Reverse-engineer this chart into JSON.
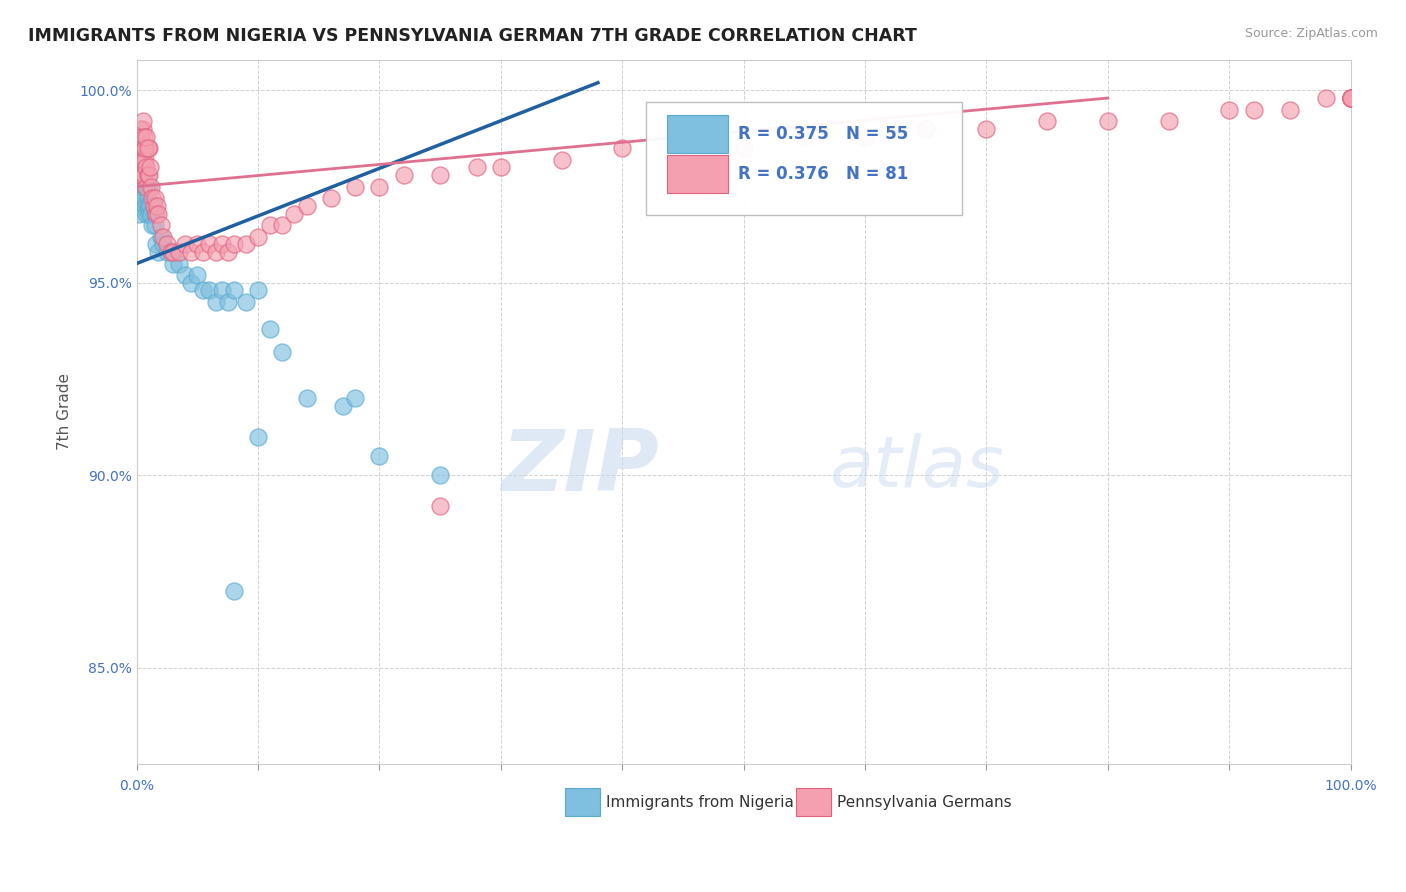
{
  "title": "IMMIGRANTS FROM NIGERIA VS PENNSYLVANIA GERMAN 7TH GRADE CORRELATION CHART",
  "source": "Source: ZipAtlas.com",
  "ylabel": "7th Grade",
  "xmin": 0.0,
  "xmax": 1.0,
  "ymin": 0.825,
  "ymax": 1.008,
  "yticks": [
    0.85,
    0.9,
    0.95,
    1.0
  ],
  "ytick_labels": [
    "85.0%",
    "90.0%",
    "95.0%",
    "100.0%"
  ],
  "blue_R": "0.375",
  "blue_N": "55",
  "pink_R": "0.376",
  "pink_N": "81",
  "blue_color": "#7fbfdf",
  "blue_edge": "#5aaacf",
  "pink_color": "#f4a0b0",
  "pink_edge": "#e06080",
  "blue_line_color": "#2060a0",
  "pink_line_color": "#e07090",
  "watermark_zip": "ZIP",
  "watermark_atlas": "atlas",
  "background_color": "#ffffff",
  "grid_color": "#cccccc",
  "blue_scatter_x": [
    0.001,
    0.002,
    0.002,
    0.003,
    0.003,
    0.003,
    0.004,
    0.004,
    0.005,
    0.005,
    0.005,
    0.006,
    0.006,
    0.006,
    0.007,
    0.007,
    0.008,
    0.008,
    0.009,
    0.009,
    0.01,
    0.01,
    0.011,
    0.012,
    0.013,
    0.015,
    0.015,
    0.016,
    0.018,
    0.02,
    0.022,
    0.025,
    0.028,
    0.03,
    0.035,
    0.04,
    0.045,
    0.05,
    0.055,
    0.06,
    0.065,
    0.07,
    0.075,
    0.08,
    0.09,
    0.1,
    0.11,
    0.12,
    0.14,
    0.17,
    0.2,
    0.25,
    0.1,
    0.18,
    0.08
  ],
  "blue_scatter_y": [
    0.97,
    0.968,
    0.972,
    0.978,
    0.98,
    0.975,
    0.976,
    0.974,
    0.982,
    0.985,
    0.978,
    0.98,
    0.975,
    0.972,
    0.978,
    0.97,
    0.975,
    0.968,
    0.972,
    0.97,
    0.975,
    0.968,
    0.97,
    0.968,
    0.965,
    0.968,
    0.965,
    0.96,
    0.958,
    0.962,
    0.96,
    0.958,
    0.958,
    0.955,
    0.955,
    0.952,
    0.95,
    0.952,
    0.948,
    0.948,
    0.945,
    0.948,
    0.945,
    0.948,
    0.945,
    0.948,
    0.938,
    0.932,
    0.92,
    0.918,
    0.905,
    0.9,
    0.91,
    0.92,
    0.87
  ],
  "pink_scatter_x": [
    0.001,
    0.002,
    0.002,
    0.003,
    0.003,
    0.004,
    0.004,
    0.005,
    0.005,
    0.006,
    0.006,
    0.007,
    0.008,
    0.008,
    0.009,
    0.01,
    0.01,
    0.011,
    0.012,
    0.013,
    0.014,
    0.015,
    0.016,
    0.017,
    0.018,
    0.02,
    0.022,
    0.025,
    0.028,
    0.03,
    0.035,
    0.04,
    0.045,
    0.05,
    0.055,
    0.06,
    0.065,
    0.07,
    0.075,
    0.08,
    0.09,
    0.1,
    0.11,
    0.12,
    0.13,
    0.14,
    0.16,
    0.18,
    0.2,
    0.22,
    0.25,
    0.28,
    0.3,
    0.35,
    0.4,
    0.45,
    0.5,
    0.55,
    0.6,
    0.65,
    0.7,
    0.75,
    0.8,
    0.85,
    0.9,
    0.92,
    0.95,
    0.98,
    1.0,
    1.0,
    1.0,
    1.0,
    1.0,
    0.003,
    0.004,
    0.005,
    0.006,
    0.007,
    0.008,
    0.009,
    0.25
  ],
  "pink_scatter_y": [
    0.98,
    0.978,
    0.985,
    0.988,
    0.982,
    0.985,
    0.978,
    0.99,
    0.982,
    0.985,
    0.978,
    0.982,
    0.98,
    0.975,
    0.978,
    0.985,
    0.978,
    0.98,
    0.975,
    0.972,
    0.97,
    0.972,
    0.968,
    0.97,
    0.968,
    0.965,
    0.962,
    0.96,
    0.958,
    0.958,
    0.958,
    0.96,
    0.958,
    0.96,
    0.958,
    0.96,
    0.958,
    0.96,
    0.958,
    0.96,
    0.96,
    0.962,
    0.965,
    0.965,
    0.968,
    0.97,
    0.972,
    0.975,
    0.975,
    0.978,
    0.978,
    0.98,
    0.98,
    0.982,
    0.985,
    0.985,
    0.985,
    0.988,
    0.988,
    0.99,
    0.99,
    0.992,
    0.992,
    0.992,
    0.995,
    0.995,
    0.995,
    0.998,
    0.998,
    0.998,
    0.998,
    0.998,
    0.998,
    0.99,
    0.988,
    0.992,
    0.988,
    0.985,
    0.988,
    0.985,
    0.892
  ]
}
